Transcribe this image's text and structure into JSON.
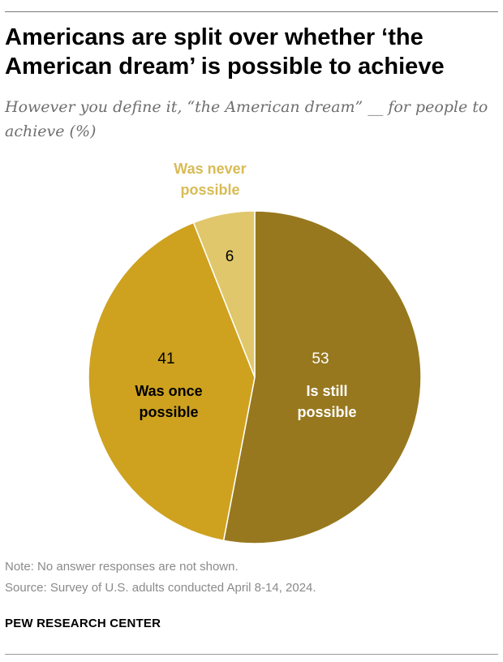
{
  "header": {
    "title": "Americans are split over whether ‘the American dream’ is possible to achieve",
    "subtitle": "However you define it, “the American dream” __ for people to achieve (%)"
  },
  "chart_data": {
    "type": "pie",
    "title": "Americans are split over whether ‘the American dream’ is possible to achieve",
    "subtitle": "However you define it, “the American dream” __ for people to achieve (%)",
    "start": "12 o'clock, clockwise",
    "slices": [
      {
        "label": "Is still possible",
        "label_lines": [
          "Is still",
          "possible"
        ],
        "value": 53,
        "color": "#97781f",
        "label_color": "#ffffff",
        "value_color": "#ffffff"
      },
      {
        "label": "Was once possible",
        "label_lines": [
          "Was once",
          "possible"
        ],
        "value": 41,
        "color": "#cea21f",
        "label_color": "#000000",
        "value_color": "#000000"
      },
      {
        "label": "Was never possible",
        "label_lines": [
          "Was never",
          "possible"
        ],
        "value": 6,
        "color": "#e1c76b",
        "label_color": "#d8bb55",
        "value_color": "#000000"
      }
    ]
  },
  "footer": {
    "note": "Note: No answer responses are not shown.",
    "source": "Source: Survey of U.S. adults conducted April 8-14, 2024.",
    "brand": "PEW RESEARCH CENTER"
  }
}
